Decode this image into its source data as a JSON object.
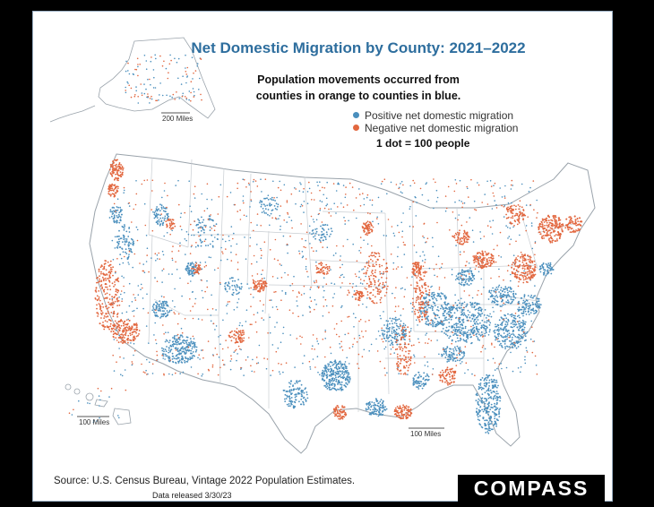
{
  "map": {
    "title": "Net Domestic Migration by County: 2021–2022",
    "subtitle_line1": "Population movements occurred from",
    "subtitle_line2": "counties in orange to counties in blue.",
    "legend": [
      {
        "label": "Positive net domestic migration",
        "color": "#4a8fbd"
      },
      {
        "label": "Negative net domestic migration",
        "color": "#e2673f"
      }
    ],
    "dot_note": "1 dot = 100 people",
    "scale_alaska": "200 Miles",
    "scale_hawaii": "100 Miles",
    "scale_main": "100 Miles",
    "colors": {
      "positive": "#4a8fbd",
      "negative": "#e2673f",
      "border": "#c8cdd2",
      "title": "#2e6e9e"
    }
  },
  "footer": {
    "source": "Source: U.S. Census Bureau, Vintage 2022 Population Estimates.",
    "released": "Data released 3/30/23",
    "logo": "COMPASS"
  }
}
